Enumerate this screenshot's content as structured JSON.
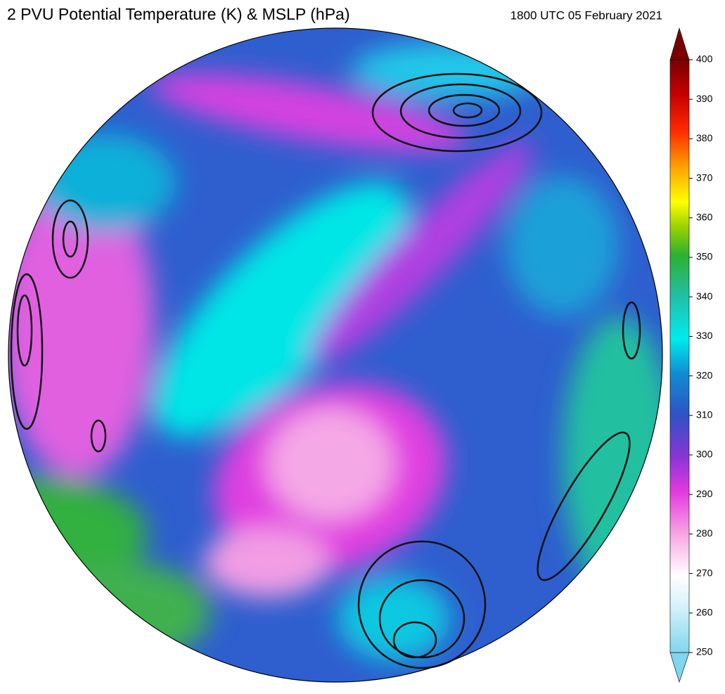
{
  "title": "2 PVU Potential Temperature (K) & MSLP (hPa)",
  "valid_time": "1800 UTC 05 February 2021",
  "colorbar": {
    "lim": [
      250,
      400
    ],
    "ticks": [
      250,
      260,
      270,
      280,
      290,
      300,
      310,
      320,
      330,
      340,
      350,
      360,
      370,
      380,
      390,
      400
    ]
  }
}
